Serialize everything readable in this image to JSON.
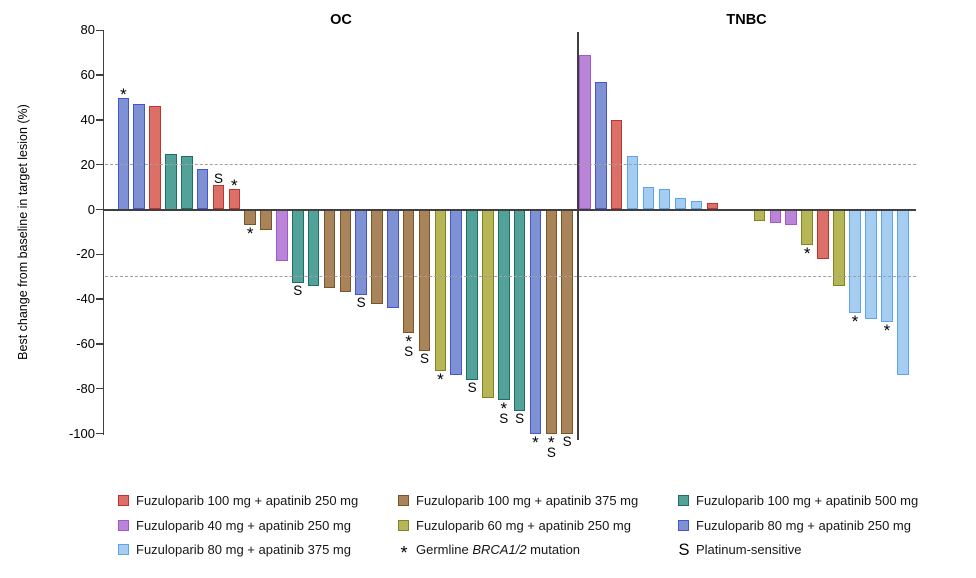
{
  "chart_data": {
    "type": "bar",
    "title": "",
    "ylabel": "Best change from baseline in target lesion (%)",
    "xlabel": "",
    "ylim": [
      -100,
      80
    ],
    "ytick_step": 20,
    "grid": "off",
    "reference_lines": [
      20,
      -30
    ],
    "groups": [
      {
        "label": "OC",
        "bars": [
          {
            "v": 50,
            "c": "slate",
            "a": [
              "*"
            ]
          },
          {
            "v": 47,
            "c": "slate"
          },
          {
            "v": 46,
            "c": "red"
          },
          {
            "v": 25,
            "c": "teal"
          },
          {
            "v": 24,
            "c": "teal"
          },
          {
            "v": 18,
            "c": "slate"
          },
          {
            "v": 11,
            "c": "red",
            "a": [
              "S"
            ]
          },
          {
            "v": 9,
            "c": "red",
            "a": [
              "*"
            ]
          },
          {
            "v": -7,
            "c": "brown",
            "a": [
              "*"
            ]
          },
          {
            "v": -9,
            "c": "brown"
          },
          {
            "v": -23,
            "c": "orchid"
          },
          {
            "v": -33,
            "c": "teal",
            "a": [
              "S"
            ]
          },
          {
            "v": -34,
            "c": "teal"
          },
          {
            "v": -35,
            "c": "brown"
          },
          {
            "v": -37,
            "c": "brown"
          },
          {
            "v": -38,
            "c": "slate",
            "a": [
              "S"
            ]
          },
          {
            "v": -42,
            "c": "brown"
          },
          {
            "v": -44,
            "c": "slate"
          },
          {
            "v": -55,
            "c": "brown",
            "a": [
              "*",
              "S"
            ]
          },
          {
            "v": -63,
            "c": "brown",
            "a": [
              "S"
            ]
          },
          {
            "v": -72,
            "c": "olive",
            "a": [
              "*"
            ]
          },
          {
            "v": -74,
            "c": "slate"
          },
          {
            "v": -76,
            "c": "teal",
            "a": [
              "S"
            ]
          },
          {
            "v": -84,
            "c": "olive"
          },
          {
            "v": -85,
            "c": "teal",
            "a": [
              "*",
              "S"
            ]
          },
          {
            "v": -90,
            "c": "teal",
            "a": [
              "S"
            ]
          },
          {
            "v": -100,
            "c": "slate",
            "a": [
              "*"
            ]
          },
          {
            "v": -100,
            "c": "brown",
            "a": [
              "*",
              "S"
            ]
          },
          {
            "v": -100,
            "c": "brown",
            "a": [
              "S"
            ]
          }
        ]
      },
      {
        "label": "TNBC",
        "gap_after": 8,
        "bars": [
          {
            "v": 69,
            "c": "orchid"
          },
          {
            "v": 57,
            "c": "slate"
          },
          {
            "v": 40,
            "c": "red"
          },
          {
            "v": 24,
            "c": "sky"
          },
          {
            "v": 10,
            "c": "sky"
          },
          {
            "v": 9,
            "c": "sky"
          },
          {
            "v": 5,
            "c": "sky"
          },
          {
            "v": 4,
            "c": "sky"
          },
          {
            "v": 3,
            "c": "red"
          },
          {
            "v": -5,
            "c": "olive"
          },
          {
            "v": -6,
            "c": "orchid"
          },
          {
            "v": -7,
            "c": "orchid"
          },
          {
            "v": -16,
            "c": "olive",
            "a": [
              "*"
            ]
          },
          {
            "v": -22,
            "c": "red"
          },
          {
            "v": -34,
            "c": "olive"
          },
          {
            "v": -46,
            "c": "sky",
            "a": [
              "*"
            ]
          },
          {
            "v": -49,
            "c": "sky"
          },
          {
            "v": -50,
            "c": "sky",
            "a": [
              "*"
            ]
          },
          {
            "v": -74,
            "c": "sky"
          }
        ]
      }
    ]
  },
  "colors": {
    "red": {
      "fill": "#DC6F67",
      "border": "#BC362F"
    },
    "slate": {
      "fill": "#7E91D3",
      "border": "#4653D6"
    },
    "teal": {
      "fill": "#53A29A",
      "border": "#1E6E66"
    },
    "brown": {
      "fill": "#A9845B",
      "border": "#7A5527"
    },
    "orchid": {
      "fill": "#BA84D8",
      "border": "#A158CC"
    },
    "olive": {
      "fill": "#B6B656",
      "border": "#82822A"
    },
    "sky": {
      "fill": "#A5CDF1",
      "border": "#5FA4E8"
    }
  },
  "legend": {
    "columns": [
      [
        {
          "swatch": "red",
          "label": "Fuzuloparib 100 mg + apatinib 250 mg"
        },
        {
          "swatch": "orchid",
          "label": "Fuzuloparib 40 mg + apatinib 250 mg"
        },
        {
          "swatch": "sky",
          "label": "Fuzuloparib 80 mg + apatinib 375 mg"
        }
      ],
      [
        {
          "swatch": "brown",
          "label": "Fuzuloparib 100 mg + apatinib 375 mg"
        },
        {
          "swatch": "olive",
          "label": "Fuzuloparib 60 mg + apatinib 250 mg"
        },
        {
          "symbol": "*",
          "label_prefix": "Germline ",
          "label_italic": "BRCA1/2",
          "label_suffix": " mutation"
        }
      ],
      [
        {
          "swatch": "teal",
          "label": "Fuzuloparib 100 mg + apatinib 500 mg"
        },
        {
          "swatch": "slate",
          "label": "Fuzuloparib 80 mg + apatinib 250 mg"
        },
        {
          "symbol": "S",
          "label": "Platinum-sensitive"
        }
      ]
    ]
  }
}
